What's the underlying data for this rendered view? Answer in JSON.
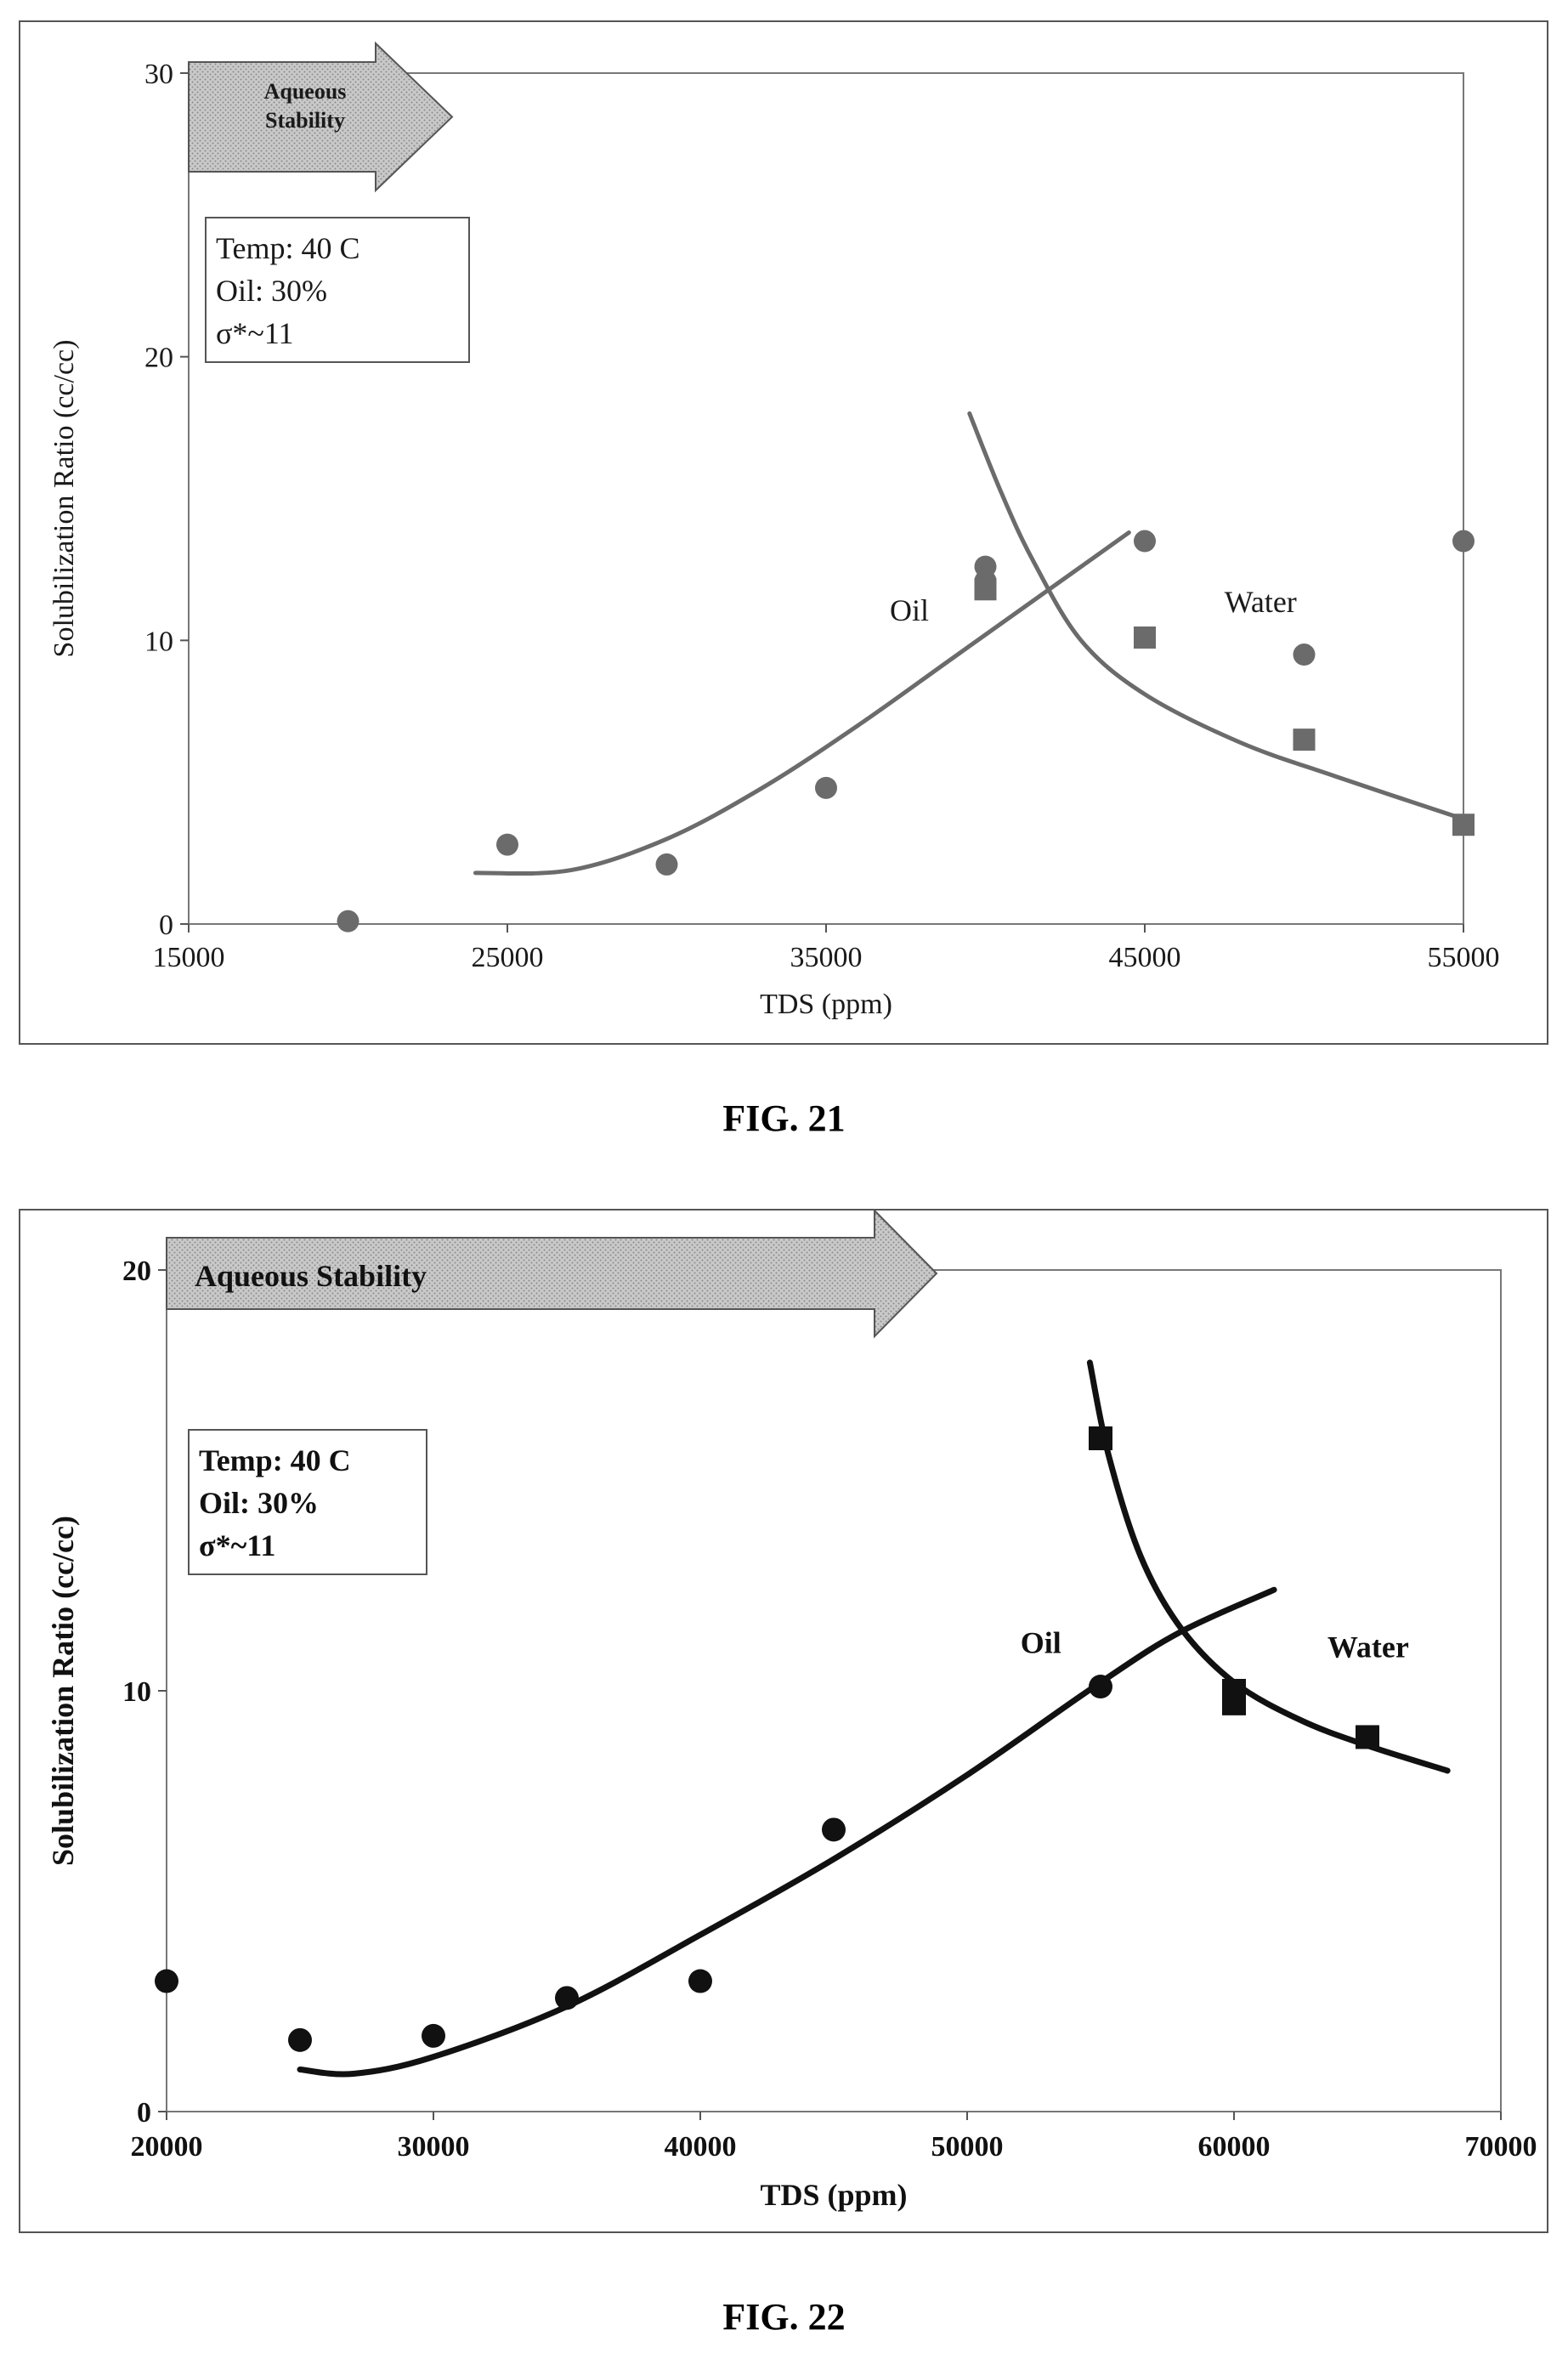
{
  "figures": [
    {
      "caption": "FIG. 21",
      "chart_data": {
        "type": "scatter",
        "xlabel": "TDS (ppm)",
        "ylabel": "Solubilization Ratio (cc/cc)",
        "xlim": [
          15000,
          55000
        ],
        "ylim": [
          0,
          30
        ],
        "x_ticks": [
          "15000",
          "25000",
          "35000",
          "45000",
          "55000"
        ],
        "y_ticks": [
          "0",
          "10",
          "20",
          "30"
        ],
        "arrow_text": [
          "Aqueous",
          "Stability"
        ],
        "info_box": [
          "Temp: 40 C",
          "Oil: 30%",
          "σ*~11"
        ],
        "annotations": [
          {
            "text": "Oil",
            "x": 37000,
            "y": 10.7
          },
          {
            "text": "Water",
            "x": 47500,
            "y": 11.0
          }
        ],
        "series": [
          {
            "name": "Oil",
            "marker": "circle",
            "points": [
              [
                20000,
                0.1
              ],
              [
                25000,
                2.8
              ],
              [
                30000,
                2.1
              ],
              [
                35000,
                4.8
              ],
              [
                40000,
                12.6
              ],
              [
                40000,
                12.1
              ],
              [
                45000,
                13.5
              ],
              [
                50000,
                9.5
              ],
              [
                55000,
                13.5
              ]
            ]
          },
          {
            "name": "Water",
            "marker": "square",
            "points": [
              [
                40000,
                11.8
              ],
              [
                45000,
                10.1
              ],
              [
                50000,
                6.5
              ],
              [
                55000,
                3.5
              ]
            ]
          }
        ],
        "curves": [
          {
            "name": "Oil",
            "points": [
              [
                24000,
                1.8
              ],
              [
                27000,
                1.9
              ],
              [
                30000,
                3.0
              ],
              [
                33000,
                4.8
              ],
              [
                36000,
                7.0
              ],
              [
                39000,
                9.4
              ],
              [
                42000,
                11.8
              ],
              [
                44500,
                13.8
              ]
            ]
          },
          {
            "name": "Water",
            "points": [
              [
                39500,
                18.0
              ],
              [
                40500,
                15.2
              ],
              [
                41500,
                12.8
              ],
              [
                43000,
                10.0
              ],
              [
                45000,
                8.1
              ],
              [
                48000,
                6.4
              ],
              [
                51000,
                5.2
              ],
              [
                55000,
                3.7
              ]
            ]
          }
        ],
        "colors": {
          "markers": "#6b6b6b",
          "curves": "#6b6b6b",
          "text": "#1a1a1a"
        }
      }
    },
    {
      "caption": "FIG. 22",
      "chart_data": {
        "type": "scatter",
        "xlabel": "TDS (ppm)",
        "ylabel": "Solubilization Ratio (cc/cc)",
        "xlim": [
          20000,
          70000
        ],
        "ylim": [
          0,
          20
        ],
        "x_ticks": [
          "20000",
          "30000",
          "40000",
          "50000",
          "60000",
          "70000"
        ],
        "y_ticks": [
          "0",
          "10",
          "20"
        ],
        "arrow_text": [
          "Aqueous Stability"
        ],
        "info_box": [
          "Temp: 40 C",
          "Oil: 30%",
          "σ*~11"
        ],
        "annotations": [
          {
            "text": "Oil",
            "x": 52000,
            "y": 10.9
          },
          {
            "text": "Water",
            "x": 63500,
            "y": 10.8
          }
        ],
        "series": [
          {
            "name": "Oil",
            "marker": "circle",
            "points": [
              [
                20000,
                3.1
              ],
              [
                25000,
                1.7
              ],
              [
                30000,
                1.8
              ],
              [
                35000,
                2.7
              ],
              [
                40000,
                3.1
              ],
              [
                45000,
                6.7
              ],
              [
                55000,
                10.1
              ]
            ]
          },
          {
            "name": "Water",
            "marker": "square",
            "points": [
              [
                55000,
                16.0
              ],
              [
                60000,
                10.0
              ],
              [
                60000,
                9.7
              ],
              [
                65000,
                8.9
              ]
            ]
          }
        ],
        "curves": [
          {
            "name": "Oil",
            "points": [
              [
                25000,
                1.0
              ],
              [
                27000,
                0.9
              ],
              [
                30000,
                1.3
              ],
              [
                35000,
                2.5
              ],
              [
                40000,
                4.2
              ],
              [
                45000,
                6.0
              ],
              [
                50000,
                8.0
              ],
              [
                55000,
                10.2
              ],
              [
                58000,
                11.4
              ],
              [
                61500,
                12.4
              ]
            ]
          },
          {
            "name": "Water",
            "points": [
              [
                54600,
                17.8
              ],
              [
                55300,
                15.6
              ],
              [
                56500,
                13.2
              ],
              [
                58000,
                11.5
              ],
              [
                60000,
                10.2
              ],
              [
                62500,
                9.3
              ],
              [
                65000,
                8.7
              ],
              [
                68000,
                8.1
              ]
            ]
          }
        ],
        "colors": {
          "markers": "#111111",
          "curves": "#111111",
          "text": "#111111"
        }
      }
    }
  ]
}
